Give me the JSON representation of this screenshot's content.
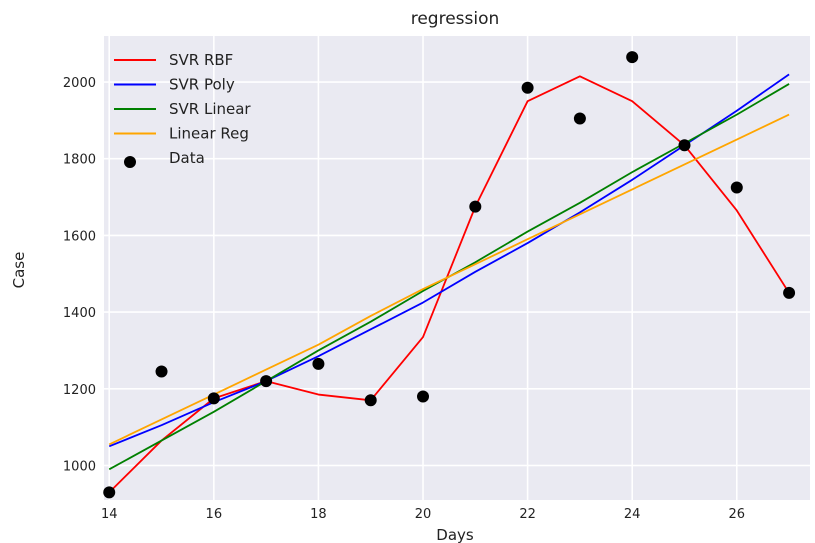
{
  "chart_data": {
    "type": "line",
    "title": "regression",
    "xlabel": "Days",
    "ylabel": "Case",
    "xlim": [
      13.9,
      27.4
    ],
    "ylim": [
      910,
      2120
    ],
    "xticks": [
      14,
      16,
      18,
      20,
      22,
      24,
      26
    ],
    "yticks": [
      1000,
      1200,
      1400,
      1600,
      1800,
      2000
    ],
    "grid": true,
    "legend_position": "top-left",
    "x": [
      14,
      15,
      16,
      17,
      18,
      19,
      20,
      21,
      22,
      23,
      24,
      25,
      26,
      27
    ],
    "series": [
      {
        "name": "SVR RBF",
        "kind": "line",
        "color": "#ff0000",
        "values": [
          930,
          1065,
          1175,
          1220,
          1185,
          1170,
          1335,
          1675,
          1950,
          2015,
          1950,
          1835,
          1665,
          1450
        ]
      },
      {
        "name": "SVR Poly",
        "kind": "line",
        "color": "#0000ff",
        "values": [
          1050,
          1105,
          1165,
          1220,
          1285,
          1355,
          1425,
          1505,
          1580,
          1660,
          1745,
          1835,
          1925,
          2020
        ]
      },
      {
        "name": "SVR Linear",
        "kind": "line",
        "color": "#008000",
        "values": [
          990,
          1065,
          1140,
          1220,
          1300,
          1375,
          1455,
          1530,
          1610,
          1685,
          1765,
          1840,
          1915,
          1995
        ]
      },
      {
        "name": "Linear Reg",
        "kind": "line",
        "color": "#ffa500",
        "values": [
          1055,
          1120,
          1185,
          1250,
          1315,
          1390,
          1460,
          1525,
          1590,
          1655,
          1720,
          1785,
          1850,
          1915
        ]
      },
      {
        "name": "Data",
        "kind": "scatter",
        "color": "#000000",
        "values": [
          930,
          1245,
          1175,
          1220,
          1265,
          1170,
          1180,
          1675,
          1985,
          1905,
          2065,
          1835,
          1725,
          1450
        ]
      }
    ]
  }
}
